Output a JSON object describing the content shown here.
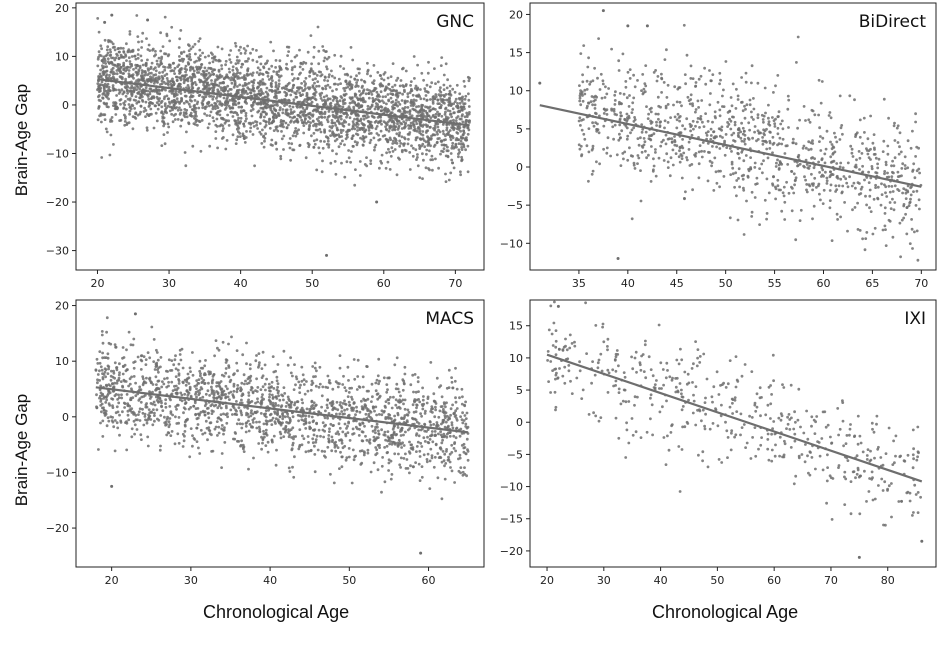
{
  "figure": {
    "ylabel_top": "Brain-Age Gap",
    "ylabel_bottom": "Brain-Age Gap",
    "xlabel_left": "Chronological Age",
    "xlabel_right": "Chronological Age"
  },
  "chart_data": [
    {
      "type": "scatter",
      "title": "GNC",
      "xlabel": "",
      "ylabel": "Brain-Age Gap",
      "xlim": [
        17,
        74
      ],
      "ylim": [
        -34,
        21
      ],
      "xticks": [
        20,
        30,
        40,
        50,
        60,
        70
      ],
      "yticks": [
        -30,
        -20,
        -10,
        0,
        10,
        20
      ],
      "grid": false,
      "x_range": [
        20,
        72
      ],
      "y_center_range": [
        5.3,
        -4.2
      ],
      "y_spread": 4.6,
      "n_points": 3200,
      "outliers": [
        {
          "x": 52,
          "y": -31
        },
        {
          "x": 59,
          "y": -20
        },
        {
          "x": 22,
          "y": 18.5
        },
        {
          "x": 21,
          "y": 17
        },
        {
          "x": 27,
          "y": 17.5
        }
      ],
      "trend": {
        "x": [
          20,
          72
        ],
        "y": [
          5.3,
          -4.2
        ]
      },
      "point_color": "#6e6e6e",
      "line_color": "#6e6e6e"
    },
    {
      "type": "scatter",
      "title": "BiDirect",
      "xlabel": "",
      "ylabel": "",
      "xlim": [
        30,
        71.5
      ],
      "ylim": [
        -13.5,
        21.5
      ],
      "xticks": [
        35,
        40,
        45,
        50,
        55,
        60,
        65,
        70
      ],
      "yticks": [
        -10,
        -5,
        0,
        5,
        10,
        15,
        20
      ],
      "grid": false,
      "x_range": [
        35,
        70
      ],
      "y_center_range": [
        8,
        -2.7
      ],
      "y_spread": 4.2,
      "n_points": 1100,
      "outliers": [
        {
          "x": 31,
          "y": 11
        },
        {
          "x": 37.5,
          "y": 20.5
        },
        {
          "x": 39,
          "y": -12
        },
        {
          "x": 40,
          "y": 18.5
        },
        {
          "x": 42,
          "y": 18.5
        }
      ],
      "trend": {
        "x": [
          31,
          70
        ],
        "y": [
          8.1,
          -2.6
        ]
      },
      "point_color": "#6e6e6e",
      "line_color": "#6e6e6e"
    },
    {
      "type": "scatter",
      "title": "MACS",
      "xlabel": "Chronological Age",
      "ylabel": "Brain-Age Gap",
      "xlim": [
        15.5,
        67
      ],
      "ylim": [
        -27,
        21
      ],
      "xticks": [
        20,
        30,
        40,
        50,
        60
      ],
      "yticks": [
        -20,
        -10,
        0,
        10,
        20
      ],
      "grid": false,
      "x_range": [
        18,
        65
      ],
      "y_center_range": [
        5.3,
        -2.8
      ],
      "y_spread": 4.3,
      "n_points": 1900,
      "outliers": [
        {
          "x": 59,
          "y": -24.5
        },
        {
          "x": 23,
          "y": 18.5
        },
        {
          "x": 20,
          "y": -12.5
        }
      ],
      "trend": {
        "x": [
          18,
          65
        ],
        "y": [
          5.3,
          -2.8
        ]
      },
      "point_color": "#6e6e6e",
      "line_color": "#6e6e6e"
    },
    {
      "type": "scatter",
      "title": "IXI",
      "xlabel": "Chronological Age",
      "ylabel": "",
      "xlim": [
        17,
        88.5
      ],
      "ylim": [
        -22.5,
        19
      ],
      "xticks": [
        20,
        30,
        40,
        50,
        60,
        70,
        80
      ],
      "yticks": [
        -20,
        -15,
        -10,
        -5,
        0,
        5,
        10,
        15
      ],
      "grid": false,
      "x_range": [
        20,
        86
      ],
      "y_center_range": [
        10.5,
        -9.2
      ],
      "y_spread": 4.2,
      "n_points": 520,
      "outliers": [
        {
          "x": 22,
          "y": 18
        },
        {
          "x": 86,
          "y": -18.5
        },
        {
          "x": 75,
          "y": -21
        }
      ],
      "trend": {
        "x": [
          20,
          86
        ],
        "y": [
          10.5,
          -9.2
        ]
      },
      "point_color": "#6e6e6e",
      "line_color": "#6e6e6e"
    }
  ]
}
